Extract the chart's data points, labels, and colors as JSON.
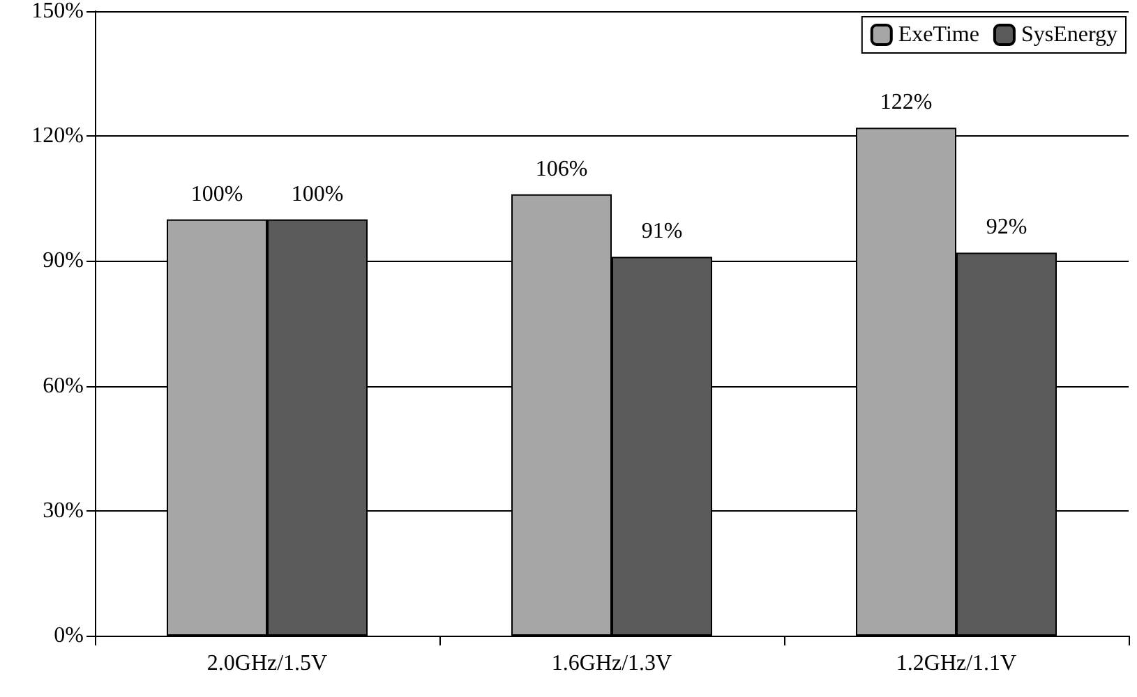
{
  "chart_data": {
    "type": "bar",
    "categories": [
      "2.0GHz/1.5V",
      "1.6GHz/1.3V",
      "1.2GHz/1.1V"
    ],
    "series": [
      {
        "name": "ExeTime",
        "color": "#a6a6a6",
        "values": [
          100,
          106,
          122
        ],
        "value_labels": [
          "100%",
          "106%",
          "122%"
        ]
      },
      {
        "name": "SysEnergy",
        "color": "#5a5a5a",
        "values": [
          100,
          91,
          92
        ],
        "value_labels": [
          "100%",
          "91%",
          "92%"
        ]
      }
    ],
    "ylim": [
      0,
      150
    ],
    "yticks": [
      {
        "value": 0,
        "label": "0%"
      },
      {
        "value": 30,
        "label": "30%"
      },
      {
        "value": 60,
        "label": "60%"
      },
      {
        "value": 90,
        "label": "90%"
      },
      {
        "value": 120,
        "label": "120%"
      },
      {
        "value": 150,
        "label": "150%"
      }
    ],
    "grid": "y",
    "legend": "top right"
  }
}
